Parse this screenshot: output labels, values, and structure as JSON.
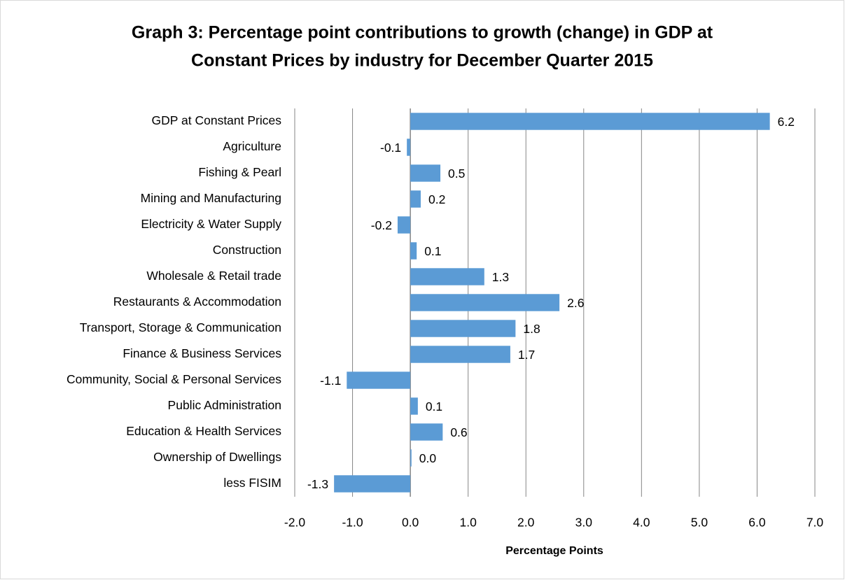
{
  "chart_data": {
    "type": "hbar",
    "title": [
      "Graph 3: Percentage point contributions to growth (change) in GDP at",
      "Constant Prices  by industry for December Quarter 2015"
    ],
    "x_label": "Percentage Points",
    "categories": [
      "GDP at Constant Prices",
      "Agriculture",
      "Fishing & Pearl",
      "Mining and Manufacturing",
      "Electricity & Water Supply",
      "Construction",
      "Wholesale & Retail trade",
      "Restaurants & Accommodation",
      "Transport, Storage & Communication",
      "Finance & Business Services",
      "Community, Social & Personal Services",
      "Public Administration",
      "Education & Health Services",
      "Ownership of Dwellings",
      "less FISIM"
    ],
    "values": [
      6.22,
      -0.06,
      0.52,
      0.18,
      -0.22,
      0.11,
      1.28,
      2.58,
      1.82,
      1.73,
      -1.1,
      0.13,
      0.56,
      0.02,
      -1.32
    ],
    "value_labels": [
      "6.2",
      "-0.1",
      "0.5",
      "0.2",
      "-0.2",
      "0.1",
      "1.3",
      "2.6",
      "1.8",
      "1.7",
      "-1.1",
      "0.1",
      "0.6",
      "0.0",
      "-1.3"
    ],
    "color": "#5b9bd5",
    "xlim": [
      -2,
      7
    ],
    "xticks": [
      {
        "value": -2,
        "label": "-2.0"
      },
      {
        "value": -1,
        "label": "-1.0"
      },
      {
        "value": 0,
        "label": "0.0"
      },
      {
        "value": 1,
        "label": "1.0"
      },
      {
        "value": 2,
        "label": "2.0"
      },
      {
        "value": 3,
        "label": "3.0"
      },
      {
        "value": 4,
        "label": "4.0"
      },
      {
        "value": 5,
        "label": "5.0"
      },
      {
        "value": 6,
        "label": "6.0"
      },
      {
        "value": 7,
        "label": "7.0"
      }
    ],
    "grid": true
  }
}
